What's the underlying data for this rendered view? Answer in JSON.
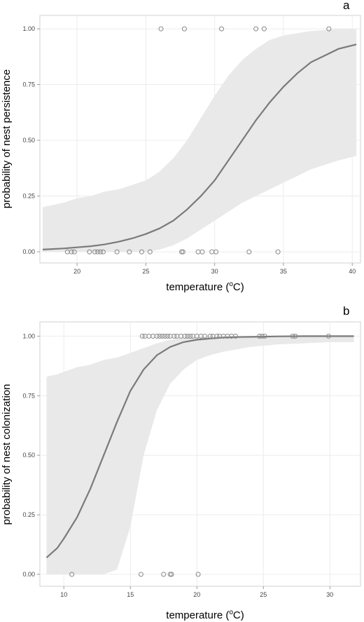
{
  "colors": {
    "curve": "#7a7a7a",
    "band": "#e9e9e9",
    "points": "#8a8a8a",
    "grid": "#ececec",
    "frame": "#d2d2d2"
  },
  "chart_data": [
    {
      "type": "line",
      "panel_label": "a",
      "xlabel_main": "temperature (",
      "xlabel_sup": "o",
      "xlabel_end": "C)",
      "ylabel": "probability of nest persistence",
      "xlim": [
        17.3,
        40.6
      ],
      "ylim": [
        -0.05,
        1.06
      ],
      "xticks": [
        20,
        25,
        30,
        35,
        40
      ],
      "yticks": [
        0.0,
        0.25,
        0.5,
        0.75,
        1.0
      ],
      "ytick_labels": [
        "0.00",
        "0.25",
        "0.50",
        "0.75",
        "1.00"
      ],
      "grid": true,
      "curve": {
        "x": [
          17.5,
          19,
          20,
          21,
          22,
          23,
          24,
          25,
          26,
          27,
          28,
          29,
          30,
          31,
          32,
          33,
          34,
          35,
          36,
          37,
          38,
          39,
          40.3
        ],
        "y": [
          0.01,
          0.015,
          0.02,
          0.025,
          0.033,
          0.045,
          0.06,
          0.08,
          0.105,
          0.14,
          0.19,
          0.25,
          0.32,
          0.41,
          0.5,
          0.59,
          0.67,
          0.74,
          0.8,
          0.85,
          0.88,
          0.91,
          0.93
        ]
      },
      "band": {
        "x": [
          17.5,
          19,
          20,
          21,
          22,
          23,
          24,
          25,
          26,
          27,
          28,
          29,
          30,
          31,
          32,
          33,
          34,
          35,
          36,
          37,
          38,
          39,
          40.3
        ],
        "lower": [
          0.0,
          0.0,
          0.0,
          0.0,
          0.0,
          0.0,
          0.0,
          0.0,
          0.01,
          0.03,
          0.06,
          0.1,
          0.14,
          0.18,
          0.22,
          0.25,
          0.28,
          0.31,
          0.34,
          0.37,
          0.39,
          0.41,
          0.43
        ],
        "upper": [
          0.2,
          0.22,
          0.24,
          0.25,
          0.27,
          0.28,
          0.3,
          0.32,
          0.36,
          0.42,
          0.5,
          0.6,
          0.7,
          0.79,
          0.86,
          0.91,
          0.95,
          0.97,
          0.98,
          0.99,
          0.995,
          1.0,
          1.0
        ]
      },
      "points": {
        "x": [
          19.3,
          19.6,
          19.8,
          20.9,
          21.3,
          21.5,
          21.7,
          21.9,
          22.9,
          23.8,
          24.7,
          25.3,
          27.6,
          27.7,
          28.8,
          29.1,
          29.8,
          30.1,
          32.5,
          34.6,
          26.1,
          27.8,
          30.5,
          33.0,
          33.6,
          38.3
        ],
        "y": [
          0,
          0,
          0,
          0,
          0,
          0,
          0,
          0,
          0,
          0,
          0,
          0,
          0,
          0,
          0,
          0,
          0,
          0,
          0,
          0,
          1,
          1,
          1,
          1,
          1,
          1
        ]
      }
    },
    {
      "type": "line",
      "panel_label": "b",
      "xlabel_main": "temperature (",
      "xlabel_sup": "o",
      "xlabel_end": "C)",
      "ylabel": "probability of nest colonization",
      "xlim": [
        8.2,
        32.3
      ],
      "ylim": [
        -0.05,
        1.06
      ],
      "xticks": [
        10,
        15,
        20,
        25,
        30
      ],
      "yticks": [
        0.0,
        0.25,
        0.5,
        0.75,
        1.0
      ],
      "ytick_labels": [
        "0.00",
        "0.25",
        "0.50",
        "0.75",
        "1.00"
      ],
      "grid": true,
      "curve": {
        "x": [
          8.7,
          9.5,
          10,
          11,
          12,
          13,
          14,
          15,
          16,
          17,
          18,
          19,
          20,
          21,
          22,
          23,
          24,
          25,
          26,
          28,
          30,
          31.8
        ],
        "y": [
          0.07,
          0.11,
          0.15,
          0.24,
          0.36,
          0.5,
          0.64,
          0.77,
          0.86,
          0.92,
          0.955,
          0.975,
          0.985,
          0.99,
          0.994,
          0.996,
          0.997,
          0.998,
          0.999,
          1.0,
          1.0,
          1.0
        ]
      },
      "band": {
        "x": [
          8.7,
          9.5,
          10,
          11,
          12,
          13,
          14,
          15,
          16,
          17,
          18,
          19,
          20,
          21,
          22,
          23,
          24,
          25,
          26,
          28,
          30,
          31.8
        ],
        "lower": [
          0.0,
          0.0,
          0.0,
          0.0,
          0.0,
          0.0,
          0.02,
          0.2,
          0.5,
          0.69,
          0.8,
          0.86,
          0.9,
          0.92,
          0.935,
          0.945,
          0.955,
          0.96,
          0.965,
          0.97,
          0.975,
          0.975
        ],
        "upper": [
          0.83,
          0.84,
          0.85,
          0.87,
          0.88,
          0.9,
          0.91,
          0.93,
          0.95,
          0.97,
          0.985,
          0.993,
          0.997,
          0.999,
          1.0,
          1.0,
          1.0,
          1.0,
          1.0,
          1.0,
          1.0,
          1.0
        ]
      },
      "points": {
        "x": [
          10.6,
          15.8,
          17.5,
          18.0,
          18.1,
          20.1,
          15.9,
          16.1,
          16.4,
          16.7,
          17.0,
          17.2,
          17.4,
          17.6,
          17.8,
          18.0,
          18.3,
          18.5,
          18.8,
          19.1,
          19.3,
          19.5,
          19.7,
          20.0,
          20.3,
          20.6,
          21.0,
          21.2,
          21.5,
          21.7,
          22.0,
          22.3,
          22.6,
          22.9,
          24.7,
          24.9,
          25.1,
          27.2,
          27.4,
          29.9
        ],
        "y": [
          0,
          0,
          0,
          0,
          0,
          0,
          1,
          1,
          1,
          1,
          1,
          1,
          1,
          1,
          1,
          1,
          1,
          1,
          1,
          1,
          1,
          1,
          1,
          1,
          1,
          1,
          1,
          1,
          1,
          1,
          1,
          1,
          1,
          1,
          1,
          1,
          1,
          1,
          1,
          1
        ]
      }
    }
  ]
}
